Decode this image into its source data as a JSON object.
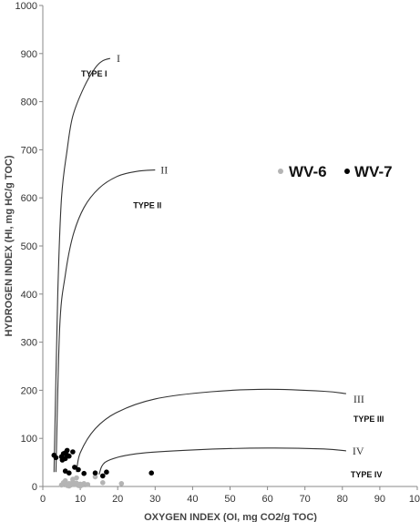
{
  "chart_data": {
    "type": "scatter",
    "xlabel": "OXYGEN INDEX (OI, mg CO2/g TOC)",
    "ylabel": "HYDROGEN INDEX (HI, mg HC/g TOC)",
    "xlim": [
      0,
      100
    ],
    "ylim": [
      0,
      1000
    ],
    "x_ticks": [
      "0",
      "10",
      "20",
      "30",
      "40",
      "50",
      "60",
      "70",
      "80",
      "90",
      "100"
    ],
    "y_ticks": [
      "0",
      "100",
      "200",
      "300",
      "400",
      "500",
      "600",
      "700",
      "800",
      "900",
      "1000"
    ],
    "grid": false,
    "legend_position": "right",
    "series": [
      {
        "name": "WV-6",
        "color": "#b4b4b4",
        "points": [
          [
            5,
            3
          ],
          [
            5.5,
            8
          ],
          [
            6,
            5
          ],
          [
            6.5,
            2
          ],
          [
            7,
            6
          ],
          [
            7.5,
            3
          ],
          [
            8,
            10
          ],
          [
            8.5,
            4
          ],
          [
            9,
            7
          ],
          [
            9.5,
            2
          ],
          [
            10,
            5
          ],
          [
            10.5,
            3
          ],
          [
            11,
            6
          ],
          [
            12,
            4
          ],
          [
            6,
            12
          ],
          [
            8,
            15
          ],
          [
            9,
            18
          ],
          [
            14,
            20
          ],
          [
            16,
            8
          ],
          [
            21,
            6
          ],
          [
            7,
            1
          ],
          [
            10,
            1
          ]
        ]
      },
      {
        "name": "WV-7",
        "color": "#000000",
        "points": [
          [
            3,
            65
          ],
          [
            3.5,
            60
          ],
          [
            5,
            62
          ],
          [
            5.2,
            55
          ],
          [
            5.5,
            68
          ],
          [
            6,
            70
          ],
          [
            6,
            58
          ],
          [
            6.5,
            75
          ],
          [
            6.5,
            65
          ],
          [
            7,
            63
          ],
          [
            8,
            72
          ],
          [
            8.5,
            40
          ],
          [
            9.5,
            35
          ],
          [
            6,
            32
          ],
          [
            7,
            28
          ],
          [
            11,
            27
          ],
          [
            14,
            28
          ],
          [
            16,
            22
          ],
          [
            17,
            30
          ],
          [
            29,
            28
          ]
        ]
      }
    ],
    "reference_curves": [
      {
        "label": "I",
        "type_label": "TYPE I",
        "points": [
          [
            3,
            30
          ],
          [
            4,
            400
          ],
          [
            5,
            600
          ],
          [
            6.5,
            700
          ],
          [
            8,
            770
          ],
          [
            11,
            830
          ],
          [
            14,
            870
          ],
          [
            16,
            885
          ],
          [
            18,
            890
          ]
        ]
      },
      {
        "label": "II",
        "type_label": "TYPE II",
        "points": [
          [
            3.5,
            30
          ],
          [
            4.5,
            330
          ],
          [
            6,
            440
          ],
          [
            8,
            520
          ],
          [
            11,
            580
          ],
          [
            15,
            620
          ],
          [
            20,
            645
          ],
          [
            25,
            655
          ],
          [
            30,
            658
          ]
        ]
      },
      {
        "label": "III",
        "type_label": "TYPE III",
        "points": [
          [
            9,
            30
          ],
          [
            10,
            70
          ],
          [
            14,
            120
          ],
          [
            20,
            155
          ],
          [
            30,
            182
          ],
          [
            45,
            197
          ],
          [
            60,
            202
          ],
          [
            75,
            198
          ],
          [
            81,
            193
          ]
        ]
      },
      {
        "label": "IV",
        "type_label": "TYPE IV",
        "points": [
          [
            15,
            25
          ],
          [
            17,
            52
          ],
          [
            25,
            68
          ],
          [
            40,
            76
          ],
          [
            60,
            80
          ],
          [
            75,
            78
          ],
          [
            81,
            74
          ]
        ]
      }
    ]
  }
}
